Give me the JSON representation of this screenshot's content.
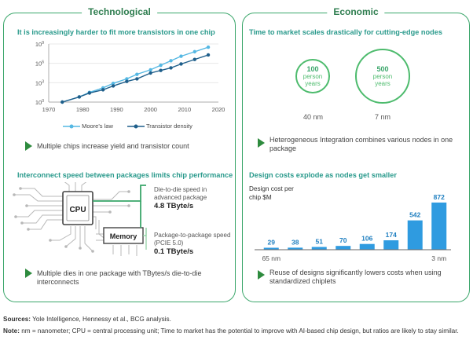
{
  "panels": {
    "technological": {
      "title": "Technological",
      "section1_title": "It is increasingly harder to fit more transistors in one chip",
      "section1_takeaway": "Multiple chips increase yield and transistor count",
      "section2_title": "Interconnect speed between packages limits chip performance",
      "section2_takeaway": "Multiple dies in one package with TBytes/s die-to-die interconnects",
      "diagram": {
        "cpu_label": "CPU",
        "memory_label": "Memory",
        "die_to_die_label": "Die-to-die speed in advanced package",
        "die_to_die_value": "4.8 TByte/s",
        "package_label": "Package-to-package speed (PCIE 5.0)",
        "package_value": "0.1 TByte/s"
      }
    },
    "economic": {
      "title": "Economic",
      "section1_title": "Time to market scales drastically for cutting-edge nodes",
      "circle1_value": "100",
      "circle1_unit": "person years",
      "circle1_node": "40 nm",
      "circle2_value": "500",
      "circle2_unit": "person years",
      "circle2_node": "7 nm",
      "section1_takeaway": "Heterogeneous Integration combines various nodes in one package",
      "section2_title": "Design costs explode as nodes get smaller",
      "section2_takeaway": "Reuse of designs significantly lowers costs when using standardized chiplets"
    }
  },
  "footer": {
    "sources_label": "Sources:",
    "sources_text": " Yole Intelligence, Hennessy et al., BCG analysis.",
    "note_label": "Note:",
    "note_text": " nm = nanometer; CPU = central processing unit; Time to market has the potential to improve with AI-based chip design, but ratios are likely to stay similar."
  },
  "colors": {
    "green": "#3aa66a",
    "teal": "#2a9a8c",
    "light_blue": "#55b8e3",
    "dark_blue": "#1f5f8b",
    "bar_blue": "#2f9be0"
  },
  "chart_data": [
    {
      "type": "line",
      "title": "It is increasingly harder to fit more transistors in one chip",
      "x_ticks": [
        "1970",
        "1980",
        "1990",
        "2000",
        "2010",
        "2020"
      ],
      "y_ticks": [
        "10^0",
        "10^3",
        "10^6",
        "10^9"
      ],
      "xlim": [
        1970,
        2020
      ],
      "ylim_log10": [
        0,
        9
      ],
      "y_scale": "log",
      "legend_position": "bottom",
      "series": [
        {
          "name": "Moore's law",
          "color": "#55b8e3",
          "x": [
            1974,
            1979,
            1982,
            1986,
            1989,
            1993,
            1996,
            2000,
            2003,
            2006,
            2009,
            2013,
            2017
          ],
          "y_log10": [
            0.0,
            0.8,
            1.5,
            2.2,
            2.9,
            3.6,
            4.3,
            5.0,
            5.7,
            6.4,
            7.1,
            7.8,
            8.5
          ]
        },
        {
          "name": "Transistor density",
          "color": "#1f5f8b",
          "x": [
            1974,
            1979,
            1982,
            1986,
            1989,
            1993,
            1996,
            2000,
            2003,
            2006,
            2009,
            2013,
            2017
          ],
          "y_log10": [
            0.0,
            0.8,
            1.4,
            1.9,
            2.5,
            3.2,
            3.6,
            4.5,
            4.9,
            5.3,
            5.9,
            6.6,
            7.3
          ]
        }
      ]
    },
    {
      "type": "bar",
      "title": "Design costs explode as nodes get smaller",
      "ylabel": "Design cost per chip $M",
      "categories": [
        "65 nm",
        "",
        "",
        "",
        "",
        "",
        "",
        "3 nm"
      ],
      "values": [
        29,
        38,
        51,
        70,
        106,
        174,
        542,
        872
      ],
      "ylim": [
        0,
        900
      ]
    }
  ]
}
